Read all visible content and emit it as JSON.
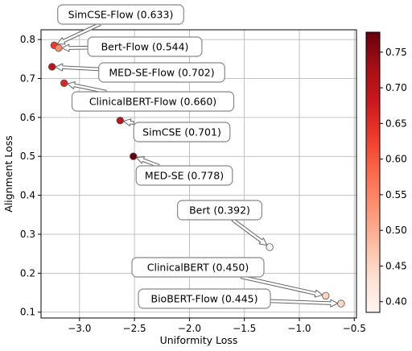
{
  "chart_data": {
    "type": "scatter",
    "title": "",
    "xlabel": "Uniformity Loss",
    "ylabel": "Alignment Loss",
    "xlim": [
      -3.35,
      -0.48
    ],
    "ylim": [
      0.085,
      0.825
    ],
    "xticks": [
      -3.0,
      -2.5,
      -2.0,
      -1.5,
      -1.0,
      -0.5
    ],
    "xtick_labels": [
      "−3.0",
      "−2.5",
      "−2.0",
      "−1.5",
      "−1.0",
      "−0.5"
    ],
    "yticks": [
      0.1,
      0.2,
      0.3,
      0.4,
      0.5,
      0.6,
      0.7,
      0.8
    ],
    "ytick_labels": [
      "0.1",
      "0.2",
      "0.3",
      "0.4",
      "0.5",
      "0.6",
      "0.7",
      "0.8"
    ],
    "grid": true,
    "colormap": "Reds",
    "colorbar": {
      "range": [
        0.385,
        0.778
      ],
      "ticks": [
        0.4,
        0.45,
        0.5,
        0.55,
        0.6,
        0.65,
        0.7,
        0.75
      ],
      "tick_labels": [
        "0.40",
        "0.45",
        "0.50",
        "0.55",
        "0.60",
        "0.65",
        "0.70",
        "0.75"
      ]
    },
    "points": [
      {
        "label": "SimCSE-Flow (0.633)",
        "x": -3.23,
        "y": 0.785,
        "value": 0.633
      },
      {
        "label": "Bert-Flow (0.544)",
        "x": -3.19,
        "y": 0.778,
        "value": 0.544
      },
      {
        "label": "MED-SE-Flow (0.702)",
        "x": -3.25,
        "y": 0.73,
        "value": 0.702
      },
      {
        "label": "ClinicalBERT-Flow (0.660)",
        "x": -3.14,
        "y": 0.688,
        "value": 0.66
      },
      {
        "label": "SimCSE (0.701)",
        "x": -2.63,
        "y": 0.592,
        "value": 0.701
      },
      {
        "label": "MED-SE (0.778)",
        "x": -2.51,
        "y": 0.5,
        "value": 0.778
      },
      {
        "label": "Bert (0.392)",
        "x": -1.27,
        "y": 0.267,
        "value": 0.392
      },
      {
        "label": "ClinicalBERT (0.450)",
        "x": -0.76,
        "y": 0.142,
        "value": 0.45
      },
      {
        "label": "BioBERT-Flow (0.445)",
        "x": -0.62,
        "y": 0.122,
        "value": 0.445
      }
    ]
  }
}
